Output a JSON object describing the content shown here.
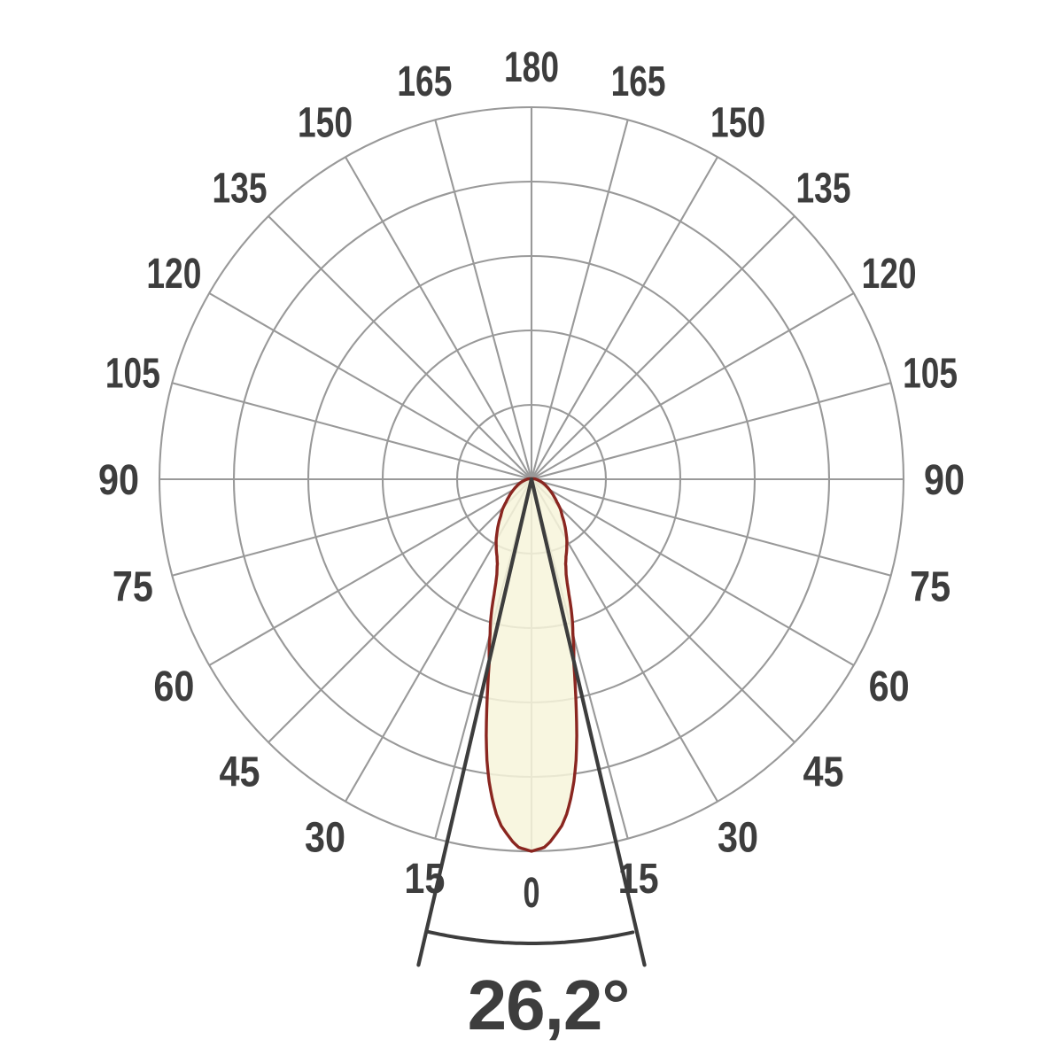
{
  "chart_data": {
    "type": "polar",
    "subtype": "luminous-intensity-distribution",
    "angle_unit": "degrees",
    "beam_angle_label": "26,2°",
    "beam_angle_deg": 26.2,
    "grid": {
      "ring_count": 5,
      "spoke_step_deg": 15,
      "on": true
    },
    "angle_labels": [
      {
        "angle": 0,
        "text": "0"
      },
      {
        "angle": 15,
        "text": "15"
      },
      {
        "angle": -15,
        "text": "15"
      },
      {
        "angle": 30,
        "text": "30"
      },
      {
        "angle": -30,
        "text": "30"
      },
      {
        "angle": 45,
        "text": "45"
      },
      {
        "angle": -45,
        "text": "45"
      },
      {
        "angle": 60,
        "text": "60"
      },
      {
        "angle": -60,
        "text": "60"
      },
      {
        "angle": 75,
        "text": "75"
      },
      {
        "angle": -75,
        "text": "75"
      },
      {
        "angle": 90,
        "text": "90"
      },
      {
        "angle": -90,
        "text": "90"
      },
      {
        "angle": 105,
        "text": "105"
      },
      {
        "angle": -105,
        "text": "105"
      },
      {
        "angle": 120,
        "text": "120"
      },
      {
        "angle": -120,
        "text": "120"
      },
      {
        "angle": 135,
        "text": "135"
      },
      {
        "angle": -135,
        "text": "135"
      },
      {
        "angle": 150,
        "text": "150"
      },
      {
        "angle": -150,
        "text": "150"
      },
      {
        "angle": 165,
        "text": "165"
      },
      {
        "angle": -165,
        "text": "165"
      },
      {
        "angle": 180,
        "text": "180"
      }
    ],
    "curve": {
      "note": "relative luminous intensity vs angle from nadir (0 = straight down), symmetric about 0",
      "angles_deg": [
        0,
        1,
        2,
        3,
        4,
        5,
        6,
        7,
        8,
        9,
        10,
        11,
        12,
        13,
        14,
        15,
        16,
        17,
        18,
        19,
        20,
        22,
        24,
        26,
        28,
        30,
        33,
        36,
        40,
        44,
        48,
        52,
        56,
        60,
        65,
        70,
        75,
        80,
        85,
        90,
        100,
        110,
        120,
        135,
        150,
        165,
        180
      ],
      "relative_intensity": [
        1.0,
        0.995,
        0.99,
        0.975,
        0.955,
        0.935,
        0.905,
        0.865,
        0.82,
        0.765,
        0.7,
        0.63,
        0.565,
        0.505,
        0.47,
        0.43,
        0.4,
        0.365,
        0.325,
        0.295,
        0.272,
        0.245,
        0.228,
        0.215,
        0.202,
        0.19,
        0.17,
        0.152,
        0.128,
        0.112,
        0.092,
        0.078,
        0.066,
        0.055,
        0.044,
        0.035,
        0.027,
        0.02,
        0.015,
        0.012,
        0.006,
        0.004,
        0.003,
        0.002,
        0.001,
        0.001,
        0.0
      ],
      "half_intensity_angle_deg": 13.1,
      "peak_relative_intensity_at_deg": 0
    },
    "colors": {
      "grid": "#999999",
      "text": "#3d3d3d",
      "curve_stroke": "#8a2620",
      "curve_fill": "#f7f4db",
      "beam_lines": "#3d3d3d",
      "background": "#ffffff"
    }
  }
}
